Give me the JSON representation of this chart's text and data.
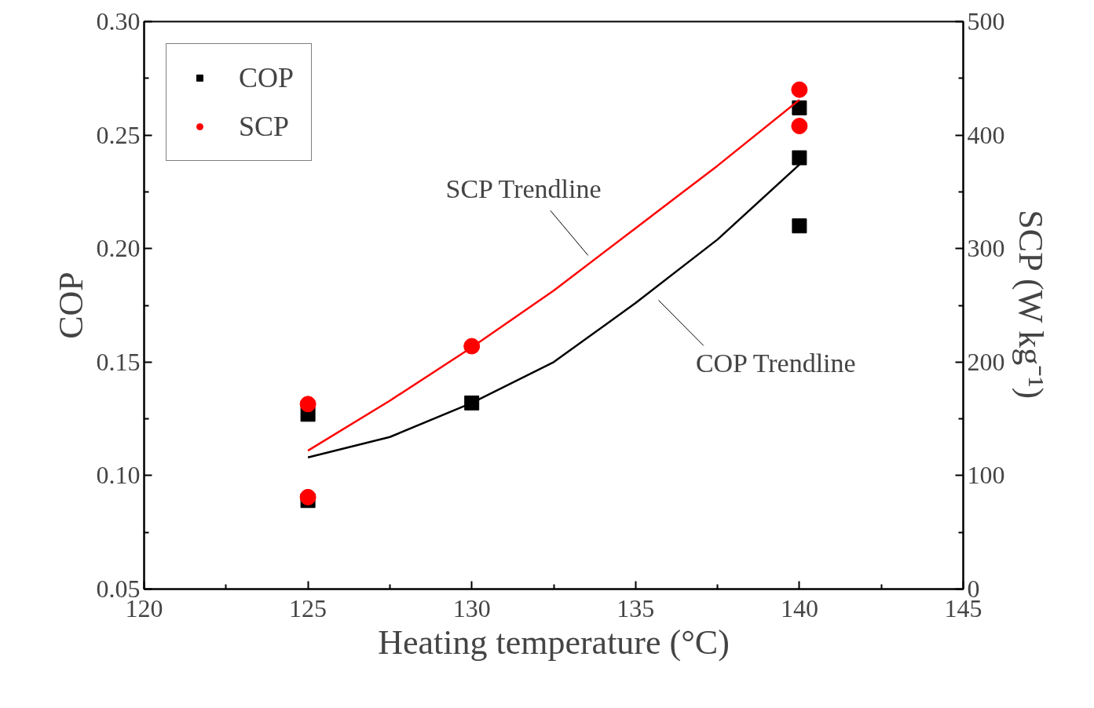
{
  "chart_data": {
    "type": "scatter",
    "xlabel": "Heating temperature (°C)",
    "ylabel": "COP",
    "y2label": "SCP (W kg⁻¹)",
    "xlim": [
      120,
      145
    ],
    "xticks": [
      120,
      125,
      130,
      135,
      140,
      145
    ],
    "ylim": [
      0.05,
      0.3
    ],
    "yticks": [
      {
        "value": 0.05,
        "label": "0.05"
      },
      {
        "value": 0.1,
        "label": "0.10"
      },
      {
        "value": 0.15,
        "label": "0.15"
      },
      {
        "value": 0.2,
        "label": "0.20"
      },
      {
        "value": 0.25,
        "label": "0.25"
      },
      {
        "value": 0.3,
        "label": "0.30"
      }
    ],
    "y2lim": [
      0,
      500
    ],
    "y2ticks": [
      0,
      100,
      200,
      300,
      400,
      500
    ],
    "grid": false,
    "legend": "top left",
    "series": [
      {
        "name": "COP",
        "marker": "square",
        "color": "#000000",
        "x": [
          125,
          125,
          130,
          140,
          140,
          140
        ],
        "values": [
          0.127,
          0.089,
          0.132,
          0.262,
          0.24,
          0.21
        ]
      },
      {
        "name": "SCP",
        "marker": "circle",
        "color": "#ff0000",
        "axis": "y2",
        "x": [
          125,
          125,
          130,
          140,
          140
        ],
        "values": [
          163,
          81,
          214,
          440,
          408
        ]
      },
      {
        "type": "line",
        "marker": "none",
        "color": "#ff0000",
        "axis": "y2",
        "x": [
          125,
          127.5,
          130,
          132.5,
          135,
          137.5,
          140
        ],
        "values": [
          122,
          166,
          213,
          263,
          318,
          373,
          431
        ]
      },
      {
        "type": "line",
        "marker": "none",
        "color": "#000000",
        "x": [
          125,
          127.5,
          130,
          132.5,
          135,
          137.5,
          140
        ],
        "values": [
          0.108,
          0.117,
          0.132,
          0.15,
          0.176,
          0.204,
          0.237
        ]
      }
    ],
    "annotations": [
      "SCP Trendline",
      "COP Trendline"
    ]
  }
}
